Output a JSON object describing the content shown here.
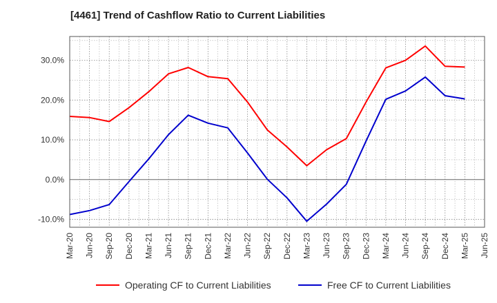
{
  "chart_data": {
    "type": "line",
    "title": "[4461]  Trend of Cashflow Ratio to Current Liabilities",
    "x": [
      "Mar-20",
      "Jun-20",
      "Sep-20",
      "Dec-20",
      "Mar-21",
      "Jun-21",
      "Sep-21",
      "Dec-21",
      "Mar-22",
      "Jun-22",
      "Sep-22",
      "Dec-22",
      "Mar-23",
      "Jun-23",
      "Sep-23",
      "Dec-23",
      "Mar-24",
      "Jun-24",
      "Sep-24",
      "Dec-24",
      "Mar-25",
      "Jun-25"
    ],
    "ylim": [
      -12,
      36
    ],
    "yticks": [
      -10,
      0,
      10,
      20,
      30
    ],
    "ytick_labels": [
      "-10.0%",
      "0.0%",
      "10.0%",
      "20.0%",
      "30.0%"
    ],
    "grid": true,
    "legend_position": "bottom",
    "series": [
      {
        "name": "Operating CF to Current Liabilities",
        "color": "#ff0000",
        "values": [
          15.9,
          15.6,
          14.6,
          18.1,
          22.1,
          26.6,
          28.2,
          25.9,
          25.4,
          19.5,
          12.5,
          8.2,
          3.5,
          7.5,
          10.3,
          19.5,
          28.1,
          30.0,
          33.6,
          28.5,
          28.3,
          null
        ]
      },
      {
        "name": "Free CF to Current Liabilities",
        "color": "#0000cd",
        "values": [
          -8.8,
          -7.8,
          -6.3,
          -0.5,
          5.2,
          11.3,
          16.2,
          14.2,
          13.0,
          6.7,
          0.1,
          -4.6,
          -10.5,
          -6.2,
          -1.2,
          9.7,
          20.2,
          22.3,
          25.8,
          21.1,
          20.3,
          null
        ]
      }
    ]
  }
}
